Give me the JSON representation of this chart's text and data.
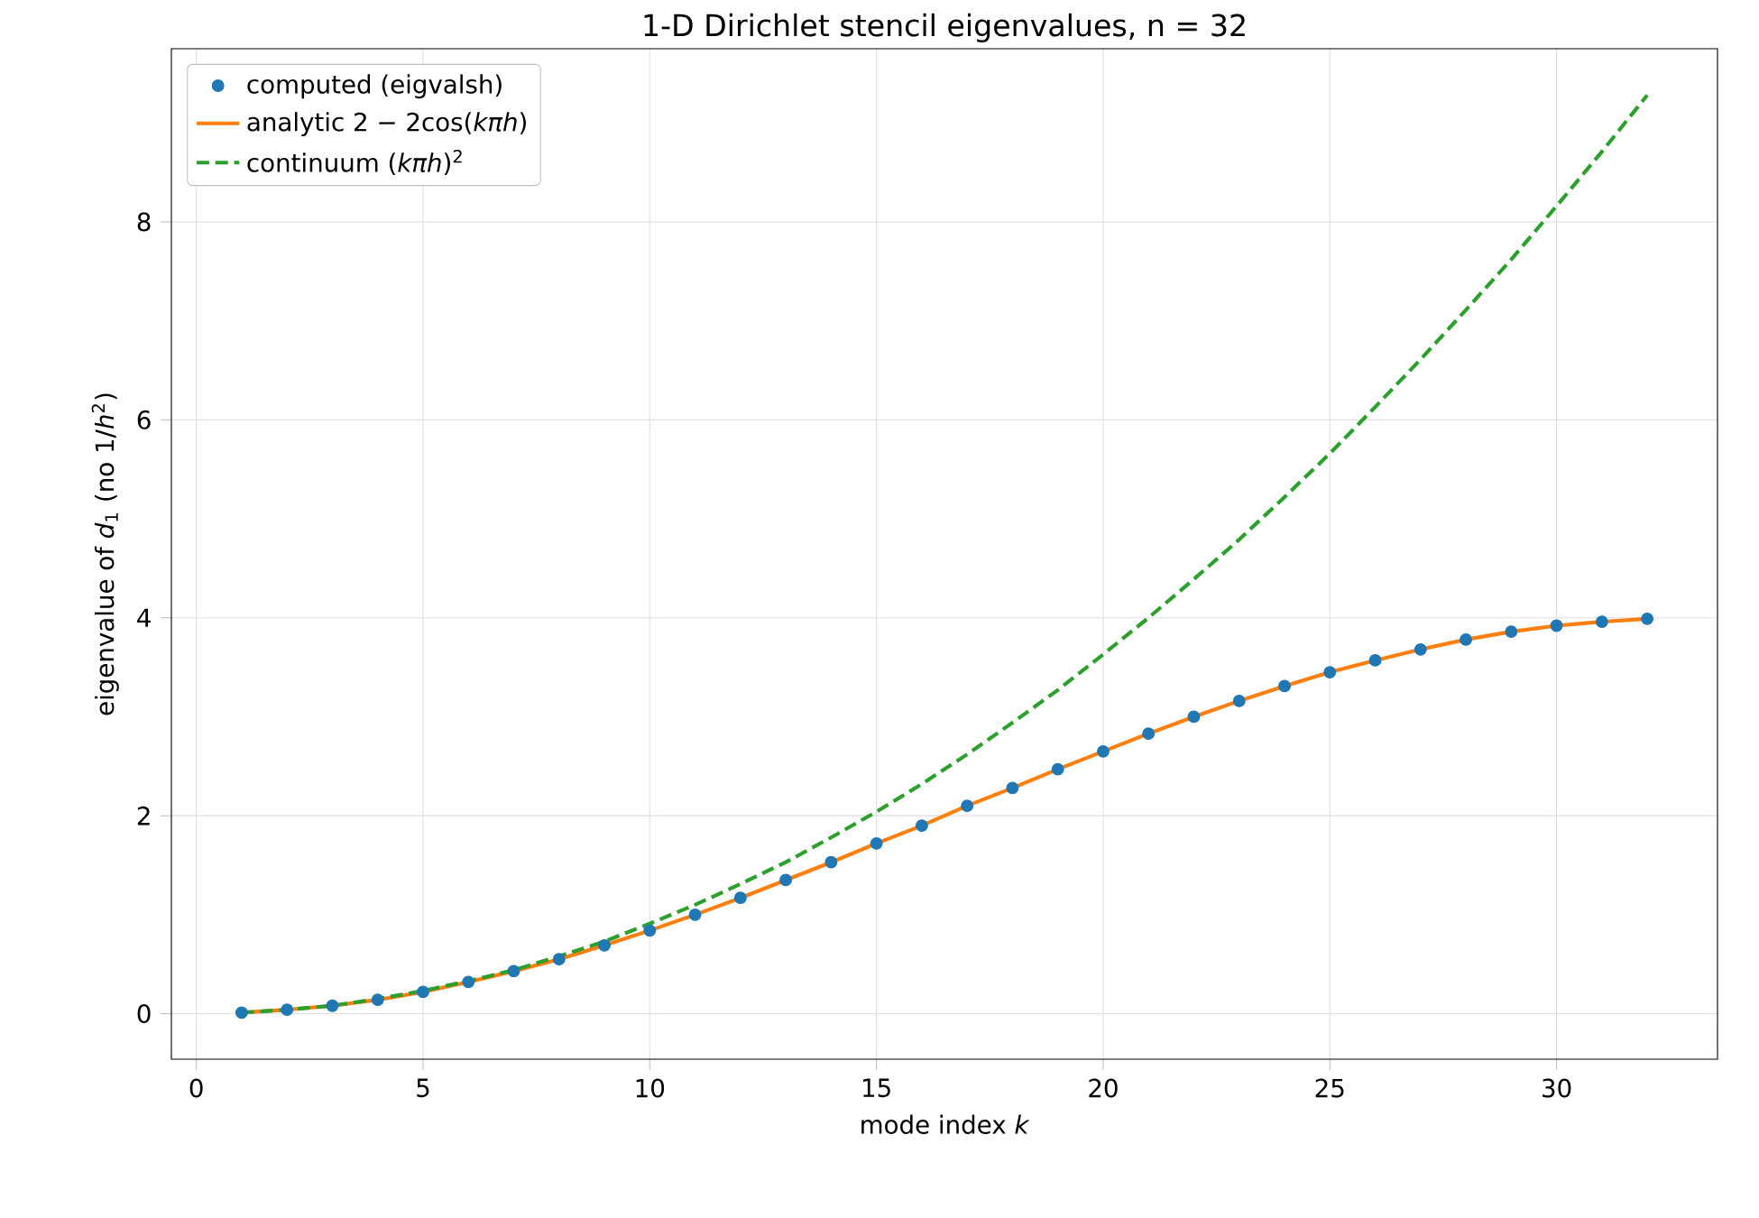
{
  "chart_data": {
    "type": "line",
    "title": "1-D Dirichlet stencil eigenvalues, n = 32",
    "xlabel": "mode index *k*",
    "ylabel": "eigenvalue of *d*$_{1}$ (no 1/*h*$^{2}$)",
    "x": [
      1,
      2,
      3,
      4,
      5,
      6,
      7,
      8,
      9,
      10,
      11,
      12,
      13,
      14,
      15,
      16,
      17,
      18,
      19,
      20,
      21,
      22,
      23,
      24,
      25,
      26,
      27,
      28,
      29,
      30,
      31,
      32
    ],
    "series": [
      {
        "name": "computed (eigvalsh)",
        "type": "scatter",
        "color": "#1f77b4",
        "values": [
          0.01,
          0.04,
          0.08,
          0.14,
          0.22,
          0.32,
          0.43,
          0.55,
          0.69,
          0.84,
          1.0,
          1.17,
          1.35,
          1.53,
          1.72,
          1.9,
          2.1,
          2.28,
          2.47,
          2.65,
          2.83,
          3.0,
          3.16,
          3.31,
          3.45,
          3.57,
          3.68,
          3.78,
          3.86,
          3.92,
          3.96,
          3.99
        ]
      },
      {
        "name": "analytic 2 − 2cos(*kπh*)",
        "line_style": "solid",
        "color": "#ff7f0e",
        "values": [
          0.01,
          0.04,
          0.08,
          0.14,
          0.22,
          0.32,
          0.43,
          0.55,
          0.69,
          0.84,
          1.0,
          1.17,
          1.35,
          1.53,
          1.72,
          1.9,
          2.1,
          2.28,
          2.47,
          2.65,
          2.83,
          3.0,
          3.16,
          3.31,
          3.45,
          3.57,
          3.68,
          3.78,
          3.86,
          3.92,
          3.96,
          3.99
        ]
      },
      {
        "name": "continuum (*kπh*)$^{2}$",
        "line_style": "dashed",
        "color": "#2ca02c",
        "values": [
          0.01,
          0.04,
          0.08,
          0.15,
          0.23,
          0.33,
          0.44,
          0.58,
          0.73,
          0.91,
          1.1,
          1.31,
          1.53,
          1.78,
          2.04,
          2.32,
          2.62,
          2.94,
          3.27,
          3.63,
          4.0,
          4.39,
          4.79,
          5.22,
          5.66,
          6.13,
          6.61,
          7.11,
          7.62,
          8.16,
          8.71,
          9.28
        ]
      }
    ],
    "xlim": [
      -0.55,
      33.55
    ],
    "ylim": [
      -0.46,
      9.75
    ],
    "xticks": [
      0,
      5,
      10,
      15,
      20,
      25,
      30
    ],
    "yticks": [
      0,
      2,
      4,
      6,
      8
    ],
    "grid": true,
    "legend": "top left"
  }
}
